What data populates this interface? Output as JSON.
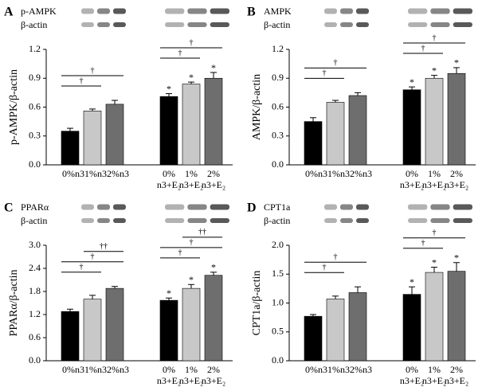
{
  "chart_data": [
    {
      "type": "bar",
      "panel": "A",
      "blot_labels": [
        "p-AMPK",
        "β-actin"
      ],
      "ylabel": "p-AMPK/β-actin",
      "categories": [
        [
          "0%n3"
        ],
        [
          "1%n3"
        ],
        [
          "2%n3"
        ],
        [
          "0%",
          "n3+E₂"
        ],
        [
          "1%",
          "n3+E₂"
        ],
        [
          "2%",
          "n3+E₂"
        ]
      ],
      "values": [
        0.35,
        0.56,
        0.63,
        0.71,
        0.84,
        0.9
      ],
      "errors": [
        0.03,
        0.02,
        0.04,
        0.03,
        0.02,
        0.06
      ],
      "colors": [
        "#000000",
        "#c8c8c8",
        "#6e6e6e",
        "#000000",
        "#c8c8c8",
        "#6e6e6e"
      ],
      "bar_markers": [
        null,
        null,
        null,
        "*",
        "*",
        "*"
      ],
      "brackets": [
        {
          "text": "†",
          "from": 0,
          "to": 1
        },
        {
          "text": "†",
          "from": 0,
          "to": 2
        },
        {
          "text": "†",
          "from": 3,
          "to": 4
        },
        {
          "text": "†",
          "from": 3,
          "to": 5
        }
      ],
      "ylim": [
        0,
        1.2
      ],
      "yticks": [
        {
          "value": 0,
          "label": "0.0"
        },
        0.3,
        0.6,
        0.9,
        1.2
      ]
    },
    {
      "type": "bar",
      "panel": "B",
      "blot_labels": [
        "AMPK",
        "β-actin"
      ],
      "ylabel": "AMPK/β-actin",
      "categories": [
        [
          "0%n3"
        ],
        [
          "1%n3"
        ],
        [
          "2%n3"
        ],
        [
          "0%",
          "n3+E₂"
        ],
        [
          "1%",
          "n3+E₂"
        ],
        [
          "2%",
          "n3+E₂"
        ]
      ],
      "values": [
        0.45,
        0.65,
        0.72,
        0.78,
        0.9,
        0.95
      ],
      "errors": [
        0.04,
        0.02,
        0.03,
        0.03,
        0.03,
        0.06
      ],
      "colors": [
        "#000000",
        "#c8c8c8",
        "#6e6e6e",
        "#000000",
        "#c8c8c8",
        "#6e6e6e"
      ],
      "bar_markers": [
        null,
        null,
        null,
        "*",
        "*",
        "*"
      ],
      "brackets": [
        {
          "text": "†",
          "from": 0,
          "to": 1
        },
        {
          "text": "†",
          "from": 0,
          "to": 2
        },
        {
          "text": "†",
          "from": 3,
          "to": 4
        },
        {
          "text": "†",
          "from": 3,
          "to": 5
        }
      ],
      "ylim": [
        0,
        1.2
      ],
      "yticks": [
        {
          "value": 0,
          "label": "0.0"
        },
        0.3,
        0.6,
        0.9,
        1.2
      ]
    },
    {
      "type": "bar",
      "panel": "C",
      "blot_labels": [
        "PPARα",
        "β-actin"
      ],
      "ylabel": "PPARα/β-actin",
      "categories": [
        [
          "0%n3"
        ],
        [
          "1%n3"
        ],
        [
          "2%n3"
        ],
        [
          "0%",
          "n3+E₂"
        ],
        [
          "1%",
          "n3+E₂"
        ],
        [
          "2%",
          "n3+E₂"
        ]
      ],
      "values": [
        1.28,
        1.6,
        1.88,
        1.57,
        1.88,
        2.22
      ],
      "errors": [
        0.06,
        0.1,
        0.05,
        0.06,
        0.1,
        0.08
      ],
      "colors": [
        "#000000",
        "#c8c8c8",
        "#6e6e6e",
        "#000000",
        "#c8c8c8",
        "#6e6e6e"
      ],
      "bar_markers": [
        null,
        null,
        null,
        "*",
        "*",
        "*"
      ],
      "brackets": [
        {
          "text": "†",
          "from": 0,
          "to": 1
        },
        {
          "text": "†",
          "from": 0,
          "to": 2
        },
        {
          "text": "††",
          "from": 1,
          "to": 2
        },
        {
          "text": "†",
          "from": 3,
          "to": 4
        },
        {
          "text": "†",
          "from": 3,
          "to": 5
        },
        {
          "text": "††",
          "from": 4,
          "to": 5
        }
      ],
      "ylim": [
        0,
        3
      ],
      "yticks": [
        {
          "value": 0,
          "label": "0.0"
        },
        0.6,
        1.2,
        1.8,
        2.4,
        {
          "value": 3,
          "label": "3.0"
        }
      ]
    },
    {
      "type": "bar",
      "panel": "D",
      "blot_labels": [
        "CPT1a",
        "β-actin"
      ],
      "ylabel": "CPT1a/β-actin",
      "categories": [
        [
          "0%n3"
        ],
        [
          "1%n3"
        ],
        [
          "2%n3"
        ],
        [
          "0%",
          "n3+E₂"
        ],
        [
          "1%",
          "n3+E₂"
        ],
        [
          "2%",
          "n3+E₂"
        ]
      ],
      "values": [
        0.77,
        1.07,
        1.18,
        1.15,
        1.53,
        1.55
      ],
      "errors": [
        0.03,
        0.05,
        0.1,
        0.13,
        0.09,
        0.15
      ],
      "colors": [
        "#000000",
        "#c8c8c8",
        "#6e6e6e",
        "#000000",
        "#c8c8c8",
        "#6e6e6e"
      ],
      "bar_markers": [
        null,
        null,
        null,
        "*",
        "*",
        "*"
      ],
      "brackets": [
        {
          "text": "†",
          "from": 0,
          "to": 1
        },
        {
          "text": "†",
          "from": 0,
          "to": 2
        },
        {
          "text": "†",
          "from": 3,
          "to": 4
        },
        {
          "text": "†",
          "from": 3,
          "to": 5
        }
      ],
      "ylim": [
        0,
        2
      ],
      "yticks": [
        {
          "value": 0,
          "label": "0.0"
        },
        0.5,
        {
          "value": 1,
          "label": "1.0"
        },
        1.5,
        {
          "value": 2,
          "label": "2.0"
        }
      ]
    }
  ]
}
